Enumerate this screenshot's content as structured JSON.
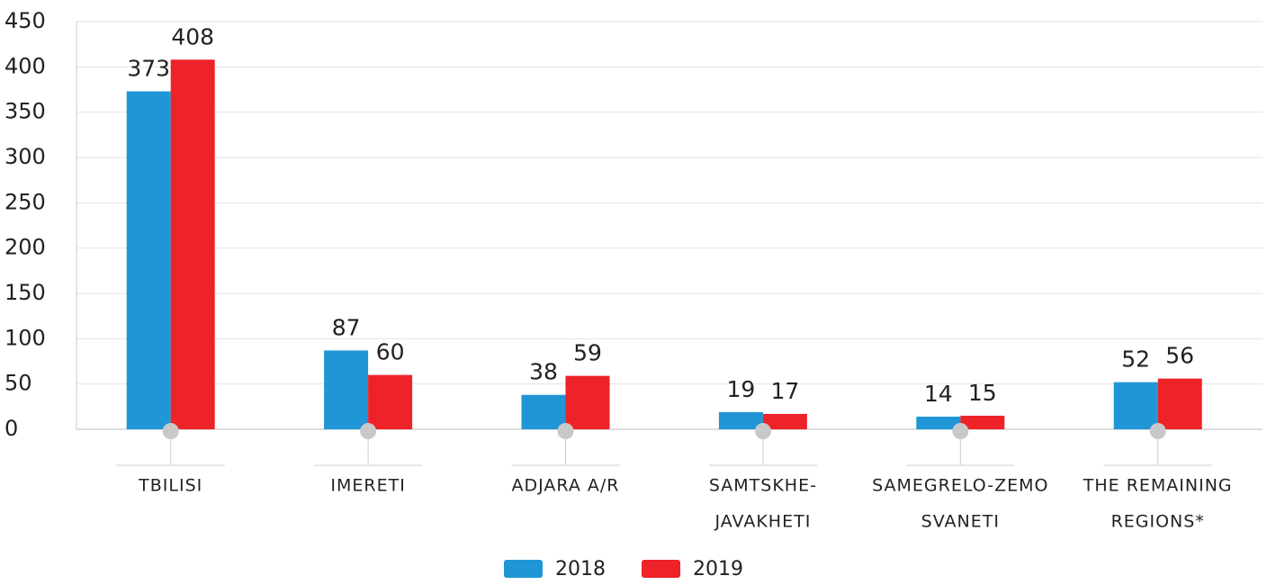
{
  "chart_data": {
    "type": "bar",
    "categories": [
      [
        "TBILISI"
      ],
      [
        "IMERETI"
      ],
      [
        "ADJARA A/R"
      ],
      [
        "SAMTSKHE-",
        "JAVAKHETI"
      ],
      [
        "SAMEGRELO-ZEMO",
        "SVANETI"
      ],
      [
        "THE REMAINING",
        "REGIONS*"
      ]
    ],
    "series": [
      {
        "name": "2018",
        "color": "#2196d6",
        "values": [
          373,
          87,
          38,
          19,
          14,
          52
        ]
      },
      {
        "name": "2019",
        "color": "#ee2229",
        "values": [
          408,
          60,
          59,
          17,
          15,
          56
        ]
      }
    ],
    "ylim": [
      0,
      450
    ],
    "yticks": [
      0,
      50,
      100,
      150,
      200,
      250,
      300,
      350,
      400,
      450
    ],
    "grid": true,
    "legend": "bottom"
  }
}
